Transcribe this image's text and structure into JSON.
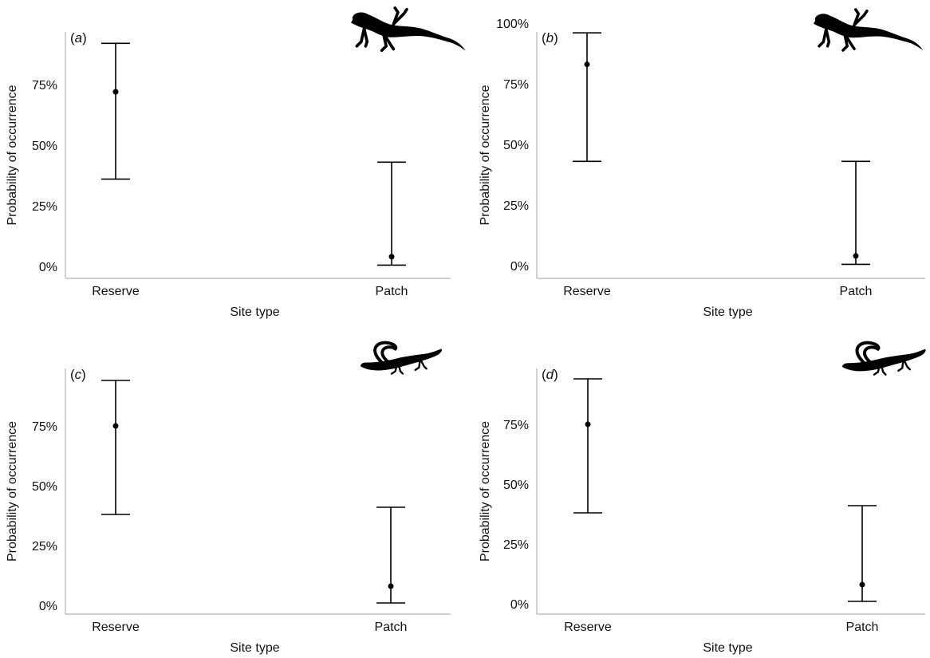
{
  "colors": {
    "marks": "#000000",
    "axis": "#b5b5b5",
    "text": "#111111"
  },
  "chart_data": [
    {
      "panel_label": "a",
      "type": "scatter",
      "error_bars": true,
      "categories": [
        "Reserve",
        "Patch"
      ],
      "points": [
        {
          "category": "Reserve",
          "estimate": 0.72,
          "lower": 0.36,
          "upper": 0.92
        },
        {
          "category": "Patch",
          "estimate": 0.04,
          "lower": 0.005,
          "upper": 0.43
        }
      ],
      "xlabel": "Site type",
      "ylabel": "Probability of occurrence",
      "yticks": [
        0,
        0.25,
        0.5,
        0.75
      ],
      "ytick_labels": [
        "0%",
        "25%",
        "50%",
        "75%"
      ],
      "ylim": [
        0,
        0.95
      ],
      "grid": false,
      "silhouette_icon": "lizard-silhouette-icon"
    },
    {
      "panel_label": "b",
      "type": "scatter",
      "error_bars": true,
      "categories": [
        "Reserve",
        "Patch"
      ],
      "points": [
        {
          "category": "Reserve",
          "estimate": 0.83,
          "lower": 0.43,
          "upper": 0.96
        },
        {
          "category": "Patch",
          "estimate": 0.04,
          "lower": 0.005,
          "upper": 0.43
        }
      ],
      "xlabel": "Site type",
      "ylabel": "Probability of occurrence",
      "yticks": [
        0,
        0.25,
        0.5,
        0.75,
        1.0
      ],
      "ytick_labels": [
        "0%",
        "25%",
        "50%",
        "75%",
        "100%"
      ],
      "ylim": [
        0,
        1.0
      ],
      "grid": false,
      "silhouette_icon": "lizard-silhouette-icon"
    },
    {
      "panel_label": "c",
      "type": "scatter",
      "error_bars": true,
      "categories": [
        "Reserve",
        "Patch"
      ],
      "points": [
        {
          "category": "Reserve",
          "estimate": 0.75,
          "lower": 0.38,
          "upper": 0.94
        },
        {
          "category": "Patch",
          "estimate": 0.08,
          "lower": 0.01,
          "upper": 0.41
        }
      ],
      "xlabel": "Site type",
      "ylabel": "Probability of occurrence",
      "yticks": [
        0,
        0.25,
        0.5,
        0.75
      ],
      "ytick_labels": [
        "0%",
        "25%",
        "50%",
        "75%"
      ],
      "ylim": [
        0,
        0.98
      ],
      "grid": false,
      "silhouette_icon": "salamander-silhouette-icon"
    },
    {
      "panel_label": "d",
      "type": "scatter",
      "error_bars": true,
      "categories": [
        "Reserve",
        "Patch"
      ],
      "points": [
        {
          "category": "Reserve",
          "estimate": 0.75,
          "lower": 0.38,
          "upper": 0.94
        },
        {
          "category": "Patch",
          "estimate": 0.08,
          "lower": 0.01,
          "upper": 0.41
        }
      ],
      "xlabel": "Site type",
      "ylabel": "Probability of occurrence",
      "yticks": [
        0,
        0.25,
        0.5,
        0.75
      ],
      "ytick_labels": [
        "0%",
        "25%",
        "50%",
        "75%"
      ],
      "ylim": [
        0,
        0.98
      ],
      "grid": false,
      "silhouette_icon": "salamander-silhouette-icon"
    }
  ]
}
